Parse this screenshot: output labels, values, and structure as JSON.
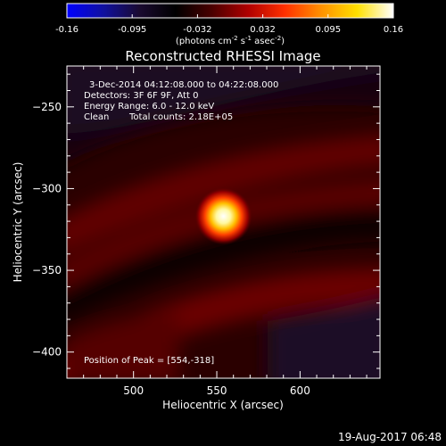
{
  "chart_data": {
    "type": "heatmap",
    "title": "Reconstructed RHESSI Image",
    "xlabel": "Heliocentric X (arcsec)",
    "ylabel": "Heliocentric Y (arcsec)",
    "xlim": [
      460,
      648
    ],
    "ylim": [
      -416,
      -225
    ],
    "x_ticks": [
      500,
      550,
      600
    ],
    "y_ticks": [
      -250,
      -300,
      -350,
      -400
    ],
    "colorbar": {
      "ticks": [
        "-0.16",
        "-0.095",
        "-0.032",
        "0.032",
        "0.095",
        "0.16"
      ],
      "range": [
        -0.16,
        0.16
      ],
      "unit_label": "(photons cm",
      "unit_sup1": "-2",
      "unit_mid": " s",
      "unit_sup2": "-1",
      "unit_mid2": " asec",
      "unit_sup3": "-2",
      "unit_end": ")",
      "colormap": [
        "#0000ff",
        "#1010a0",
        "#1a0a30",
        "#000000",
        "#4a0000",
        "#b00000",
        "#ff3000",
        "#ff9000",
        "#ffe000",
        "#ffffff"
      ]
    },
    "peak": {
      "x": 554,
      "y": -318,
      "value": 0.16
    },
    "annotations": {
      "time_range": "3-Dec-2014 04:12:08.000 to 04:22:08.000",
      "detectors": "Detectors: 3F 6F 9F, Att 0",
      "energy": "Energy Range: 6.0 - 12.0 keV",
      "method": "Clean",
      "counts": "Total counts: 2.18E+05",
      "peak_position": "Position of Peak = [554,-318]"
    },
    "timestamp": "19-Aug-2017 06:48"
  }
}
